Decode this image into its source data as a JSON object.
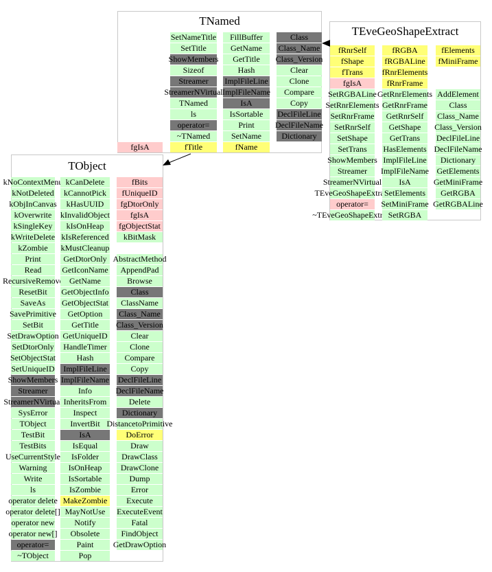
{
  "colors": {
    "green": "#ccffcc",
    "gray": "#777777",
    "yellow": "#ffff77",
    "pink": "#ffcccc"
  },
  "classes": [
    {
      "name": "TNamed",
      "columns": [
        {
          "items": [
            {
              "label": "SetNameTitle",
              "style": "green"
            },
            {
              "label": "SetTitle",
              "style": "green"
            },
            {
              "label": "ShowMembers",
              "style": "gray"
            },
            {
              "label": "Sizeof",
              "style": "green"
            },
            {
              "label": "Streamer",
              "style": "gray"
            },
            {
              "label": "StreamerNVirtual",
              "style": "gray"
            },
            {
              "label": "TNamed",
              "style": "green"
            },
            {
              "label": "ls",
              "style": "green"
            },
            {
              "label": "operator=",
              "style": "gray"
            },
            {
              "label": "~TNamed",
              "style": "green"
            },
            {
              "label": "fTitle",
              "style": "yellow"
            }
          ]
        },
        {
          "items": [
            {
              "label": "FillBuffer",
              "style": "green"
            },
            {
              "label": "GetName",
              "style": "green"
            },
            {
              "label": "GetTitle",
              "style": "green"
            },
            {
              "label": "Hash",
              "style": "green"
            },
            {
              "label": "ImplFileLine",
              "style": "gray"
            },
            {
              "label": "ImplFileName",
              "style": "gray"
            },
            {
              "label": "IsA",
              "style": "gray"
            },
            {
              "label": "IsSortable",
              "style": "green"
            },
            {
              "label": "Print",
              "style": "green"
            },
            {
              "label": "SetName",
              "style": "green"
            },
            {
              "label": "fName",
              "style": "yellow"
            }
          ]
        },
        {
          "items": [
            {
              "label": "Class",
              "style": "gray"
            },
            {
              "label": "Class_Name",
              "style": "gray"
            },
            {
              "label": "Class_Version",
              "style": "gray"
            },
            {
              "label": "Clear",
              "style": "green"
            },
            {
              "label": "Clone",
              "style": "green"
            },
            {
              "label": "Compare",
              "style": "green"
            },
            {
              "label": "Copy",
              "style": "green"
            },
            {
              "label": "DeclFileLine",
              "style": "gray"
            },
            {
              "label": "DeclFileName",
              "style": "gray"
            },
            {
              "label": "Dictionary",
              "style": "gray"
            }
          ]
        },
        {
          "items": [
            {
              "label": "fgIsA",
              "style": "pink"
            }
          ]
        }
      ]
    },
    {
      "name": "TEveGeoShapeExtract",
      "columns": [
        {
          "items": [
            {
              "label": "fRnrSelf",
              "style": "yellow"
            },
            {
              "label": "fShape",
              "style": "yellow"
            },
            {
              "label": "fTrans",
              "style": "yellow"
            },
            {
              "label": "fgIsA",
              "style": "pink"
            },
            {
              "label": "SetRGBALine",
              "style": "green"
            },
            {
              "label": "SetRnrElements",
              "style": "green"
            },
            {
              "label": "SetRnrFrame",
              "style": "green"
            },
            {
              "label": "SetRnrSelf",
              "style": "green"
            },
            {
              "label": "SetShape",
              "style": "green"
            },
            {
              "label": "SetTrans",
              "style": "green"
            },
            {
              "label": "ShowMembers",
              "style": "green"
            },
            {
              "label": "Streamer",
              "style": "green"
            },
            {
              "label": "StreamerNVirtual",
              "style": "green"
            },
            {
              "label": "TEveGeoShapeExtract",
              "style": "green"
            },
            {
              "label": "operator=",
              "style": "pink"
            },
            {
              "label": "~TEveGeoShapeExtract",
              "style": "green"
            }
          ]
        },
        {
          "items": [
            {
              "label": "fRGBA",
              "style": "yellow"
            },
            {
              "label": "fRGBALine",
              "style": "yellow"
            },
            {
              "label": "fRnrElements",
              "style": "yellow"
            },
            {
              "label": "fRnrFrame",
              "style": "yellow"
            },
            {
              "label": "GetRnrElements",
              "style": "green"
            },
            {
              "label": "GetRnrFrame",
              "style": "green"
            },
            {
              "label": "GetRnrSelf",
              "style": "green"
            },
            {
              "label": "GetShape",
              "style": "green"
            },
            {
              "label": "GetTrans",
              "style": "green"
            },
            {
              "label": "HasElements",
              "style": "green"
            },
            {
              "label": "ImplFileLine",
              "style": "green"
            },
            {
              "label": "ImplFileName",
              "style": "green"
            },
            {
              "label": "IsA",
              "style": "green"
            },
            {
              "label": "SetElements",
              "style": "green"
            },
            {
              "label": "SetMiniFrame",
              "style": "green"
            },
            {
              "label": "SetRGBA",
              "style": "green"
            }
          ]
        },
        {
          "items": [
            {
              "label": "fElements",
              "style": "yellow"
            },
            {
              "label": "fMiniFrame",
              "style": "yellow"
            },
            {
              "label": "",
              "style": "none"
            },
            {
              "label": "",
              "style": "none"
            },
            {
              "label": "AddElement",
              "style": "green"
            },
            {
              "label": "Class",
              "style": "green"
            },
            {
              "label": "Class_Name",
              "style": "green"
            },
            {
              "label": "Class_Version",
              "style": "green"
            },
            {
              "label": "DeclFileLine",
              "style": "green"
            },
            {
              "label": "DeclFileName",
              "style": "green"
            },
            {
              "label": "Dictionary",
              "style": "green"
            },
            {
              "label": "GetElements",
              "style": "green"
            },
            {
              "label": "GetMiniFrame",
              "style": "green"
            },
            {
              "label": "GetRGBA",
              "style": "green"
            },
            {
              "label": "GetRGBALine",
              "style": "green"
            }
          ]
        }
      ]
    },
    {
      "name": "TObject",
      "columns": [
        {
          "items": [
            {
              "label": "kNoContextMenu",
              "style": "green"
            },
            {
              "label": "kNotDeleted",
              "style": "green"
            },
            {
              "label": "kObjInCanvas",
              "style": "green"
            },
            {
              "label": "kOverwrite",
              "style": "green"
            },
            {
              "label": "kSingleKey",
              "style": "green"
            },
            {
              "label": "kWriteDelete",
              "style": "green"
            },
            {
              "label": "kZombie",
              "style": "green"
            },
            {
              "label": "Print",
              "style": "green"
            },
            {
              "label": "Read",
              "style": "green"
            },
            {
              "label": "RecursiveRemove",
              "style": "green"
            },
            {
              "label": "ResetBit",
              "style": "green"
            },
            {
              "label": "SaveAs",
              "style": "green"
            },
            {
              "label": "SavePrimitive",
              "style": "green"
            },
            {
              "label": "SetBit",
              "style": "green"
            },
            {
              "label": "SetDrawOption",
              "style": "green"
            },
            {
              "label": "SetDtorOnly",
              "style": "green"
            },
            {
              "label": "SetObjectStat",
              "style": "green"
            },
            {
              "label": "SetUniqueID",
              "style": "green"
            },
            {
              "label": "ShowMembers",
              "style": "gray"
            },
            {
              "label": "Streamer",
              "style": "gray"
            },
            {
              "label": "StreamerNVirtual",
              "style": "gray"
            },
            {
              "label": "SysError",
              "style": "green"
            },
            {
              "label": "TObject",
              "style": "green"
            },
            {
              "label": "TestBit",
              "style": "green"
            },
            {
              "label": "TestBits",
              "style": "green"
            },
            {
              "label": "UseCurrentStyle",
              "style": "green"
            },
            {
              "label": "Warning",
              "style": "green"
            },
            {
              "label": "Write",
              "style": "green"
            },
            {
              "label": "ls",
              "style": "green"
            },
            {
              "label": "operator delete",
              "style": "green"
            },
            {
              "label": "operator delete[]",
              "style": "green"
            },
            {
              "label": "operator new",
              "style": "green"
            },
            {
              "label": "operator new[]",
              "style": "green"
            },
            {
              "label": "operator=",
              "style": "gray"
            },
            {
              "label": "~TObject",
              "style": "green"
            }
          ]
        },
        {
          "items": [
            {
              "label": "kCanDelete",
              "style": "green"
            },
            {
              "label": "kCannotPick",
              "style": "green"
            },
            {
              "label": "kHasUUID",
              "style": "green"
            },
            {
              "label": "kInvalidObject",
              "style": "green"
            },
            {
              "label": "kIsOnHeap",
              "style": "green"
            },
            {
              "label": "kIsReferenced",
              "style": "green"
            },
            {
              "label": "kMustCleanup",
              "style": "green"
            },
            {
              "label": "GetDtorOnly",
              "style": "green"
            },
            {
              "label": "GetIconName",
              "style": "green"
            },
            {
              "label": "GetName",
              "style": "green"
            },
            {
              "label": "GetObjectInfo",
              "style": "green"
            },
            {
              "label": "GetObjectStat",
              "style": "green"
            },
            {
              "label": "GetOption",
              "style": "green"
            },
            {
              "label": "GetTitle",
              "style": "green"
            },
            {
              "label": "GetUniqueID",
              "style": "green"
            },
            {
              "label": "HandleTimer",
              "style": "green"
            },
            {
              "label": "Hash",
              "style": "green"
            },
            {
              "label": "ImplFileLine",
              "style": "gray"
            },
            {
              "label": "ImplFileName",
              "style": "gray"
            },
            {
              "label": "Info",
              "style": "green"
            },
            {
              "label": "InheritsFrom",
              "style": "green"
            },
            {
              "label": "Inspect",
              "style": "green"
            },
            {
              "label": "InvertBit",
              "style": "green"
            },
            {
              "label": "IsA",
              "style": "gray"
            },
            {
              "label": "IsEqual",
              "style": "green"
            },
            {
              "label": "IsFolder",
              "style": "green"
            },
            {
              "label": "IsOnHeap",
              "style": "green"
            },
            {
              "label": "IsSortable",
              "style": "green"
            },
            {
              "label": "IsZombie",
              "style": "green"
            },
            {
              "label": "MakeZombie",
              "style": "yellow"
            },
            {
              "label": "MayNotUse",
              "style": "green"
            },
            {
              "label": "Notify",
              "style": "green"
            },
            {
              "label": "Obsolete",
              "style": "green"
            },
            {
              "label": "Paint",
              "style": "green"
            },
            {
              "label": "Pop",
              "style": "green"
            }
          ]
        },
        {
          "items": [
            {
              "label": "fBits",
              "style": "pink"
            },
            {
              "label": "fUniqueID",
              "style": "pink"
            },
            {
              "label": "fgDtorOnly",
              "style": "pink"
            },
            {
              "label": "fgIsA",
              "style": "pink"
            },
            {
              "label": "fgObjectStat",
              "style": "pink"
            },
            {
              "label": "kBitMask",
              "style": "green"
            },
            {
              "label": "",
              "style": "none"
            },
            {
              "label": "AbstractMethod",
              "style": "green"
            },
            {
              "label": "AppendPad",
              "style": "green"
            },
            {
              "label": "Browse",
              "style": "green"
            },
            {
              "label": "Class",
              "style": "gray"
            },
            {
              "label": "ClassName",
              "style": "green"
            },
            {
              "label": "Class_Name",
              "style": "gray"
            },
            {
              "label": "Class_Version",
              "style": "gray"
            },
            {
              "label": "Clear",
              "style": "green"
            },
            {
              "label": "Clone",
              "style": "green"
            },
            {
              "label": "Compare",
              "style": "green"
            },
            {
              "label": "Copy",
              "style": "green"
            },
            {
              "label": "DeclFileLine",
              "style": "gray"
            },
            {
              "label": "DeclFileName",
              "style": "gray"
            },
            {
              "label": "Delete",
              "style": "green"
            },
            {
              "label": "Dictionary",
              "style": "gray"
            },
            {
              "label": "DistancetoPrimitive",
              "style": "green"
            },
            {
              "label": "DoError",
              "style": "yellow"
            },
            {
              "label": "Draw",
              "style": "green"
            },
            {
              "label": "DrawClass",
              "style": "green"
            },
            {
              "label": "DrawClone",
              "style": "green"
            },
            {
              "label": "Dump",
              "style": "green"
            },
            {
              "label": "Error",
              "style": "green"
            },
            {
              "label": "Execute",
              "style": "green"
            },
            {
              "label": "ExecuteEvent",
              "style": "green"
            },
            {
              "label": "Fatal",
              "style": "green"
            },
            {
              "label": "FindObject",
              "style": "green"
            },
            {
              "label": "GetDrawOption",
              "style": "green"
            }
          ]
        }
      ]
    }
  ]
}
